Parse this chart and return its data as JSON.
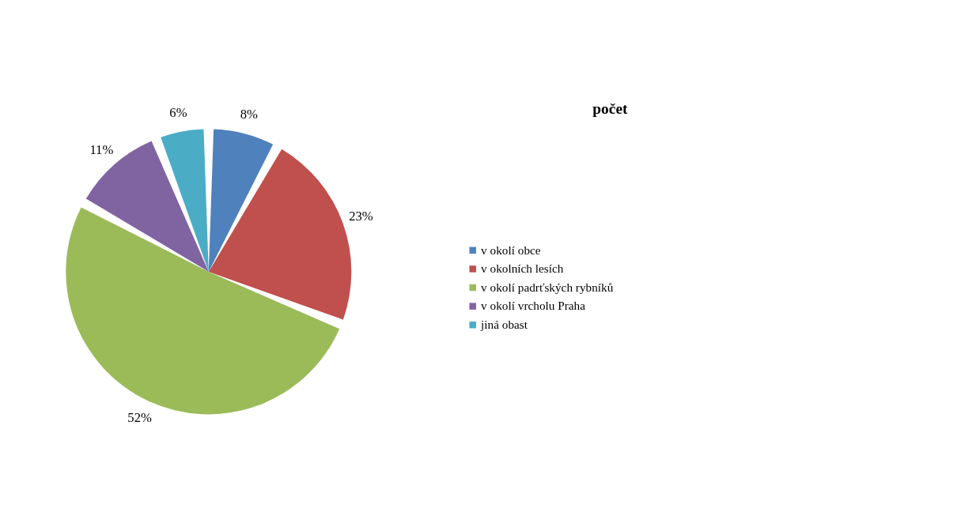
{
  "chart_data": {
    "type": "pie",
    "title": "počet",
    "categories": [
      "v okolí obce",
      "v okolních lesích",
      "v okolí  padrťských rybníků",
      "v okolí vrcholu Praha",
      "jiná obast"
    ],
    "values": [
      8,
      23,
      52,
      11,
      6
    ],
    "colors": [
      "#4f81bd",
      "#c0504d",
      "#9bbb59",
      "#8064a2",
      "#4bacc6"
    ],
    "value_labels": [
      "8%",
      "23%",
      "52%",
      "11%",
      "6%"
    ],
    "legend": "right"
  }
}
